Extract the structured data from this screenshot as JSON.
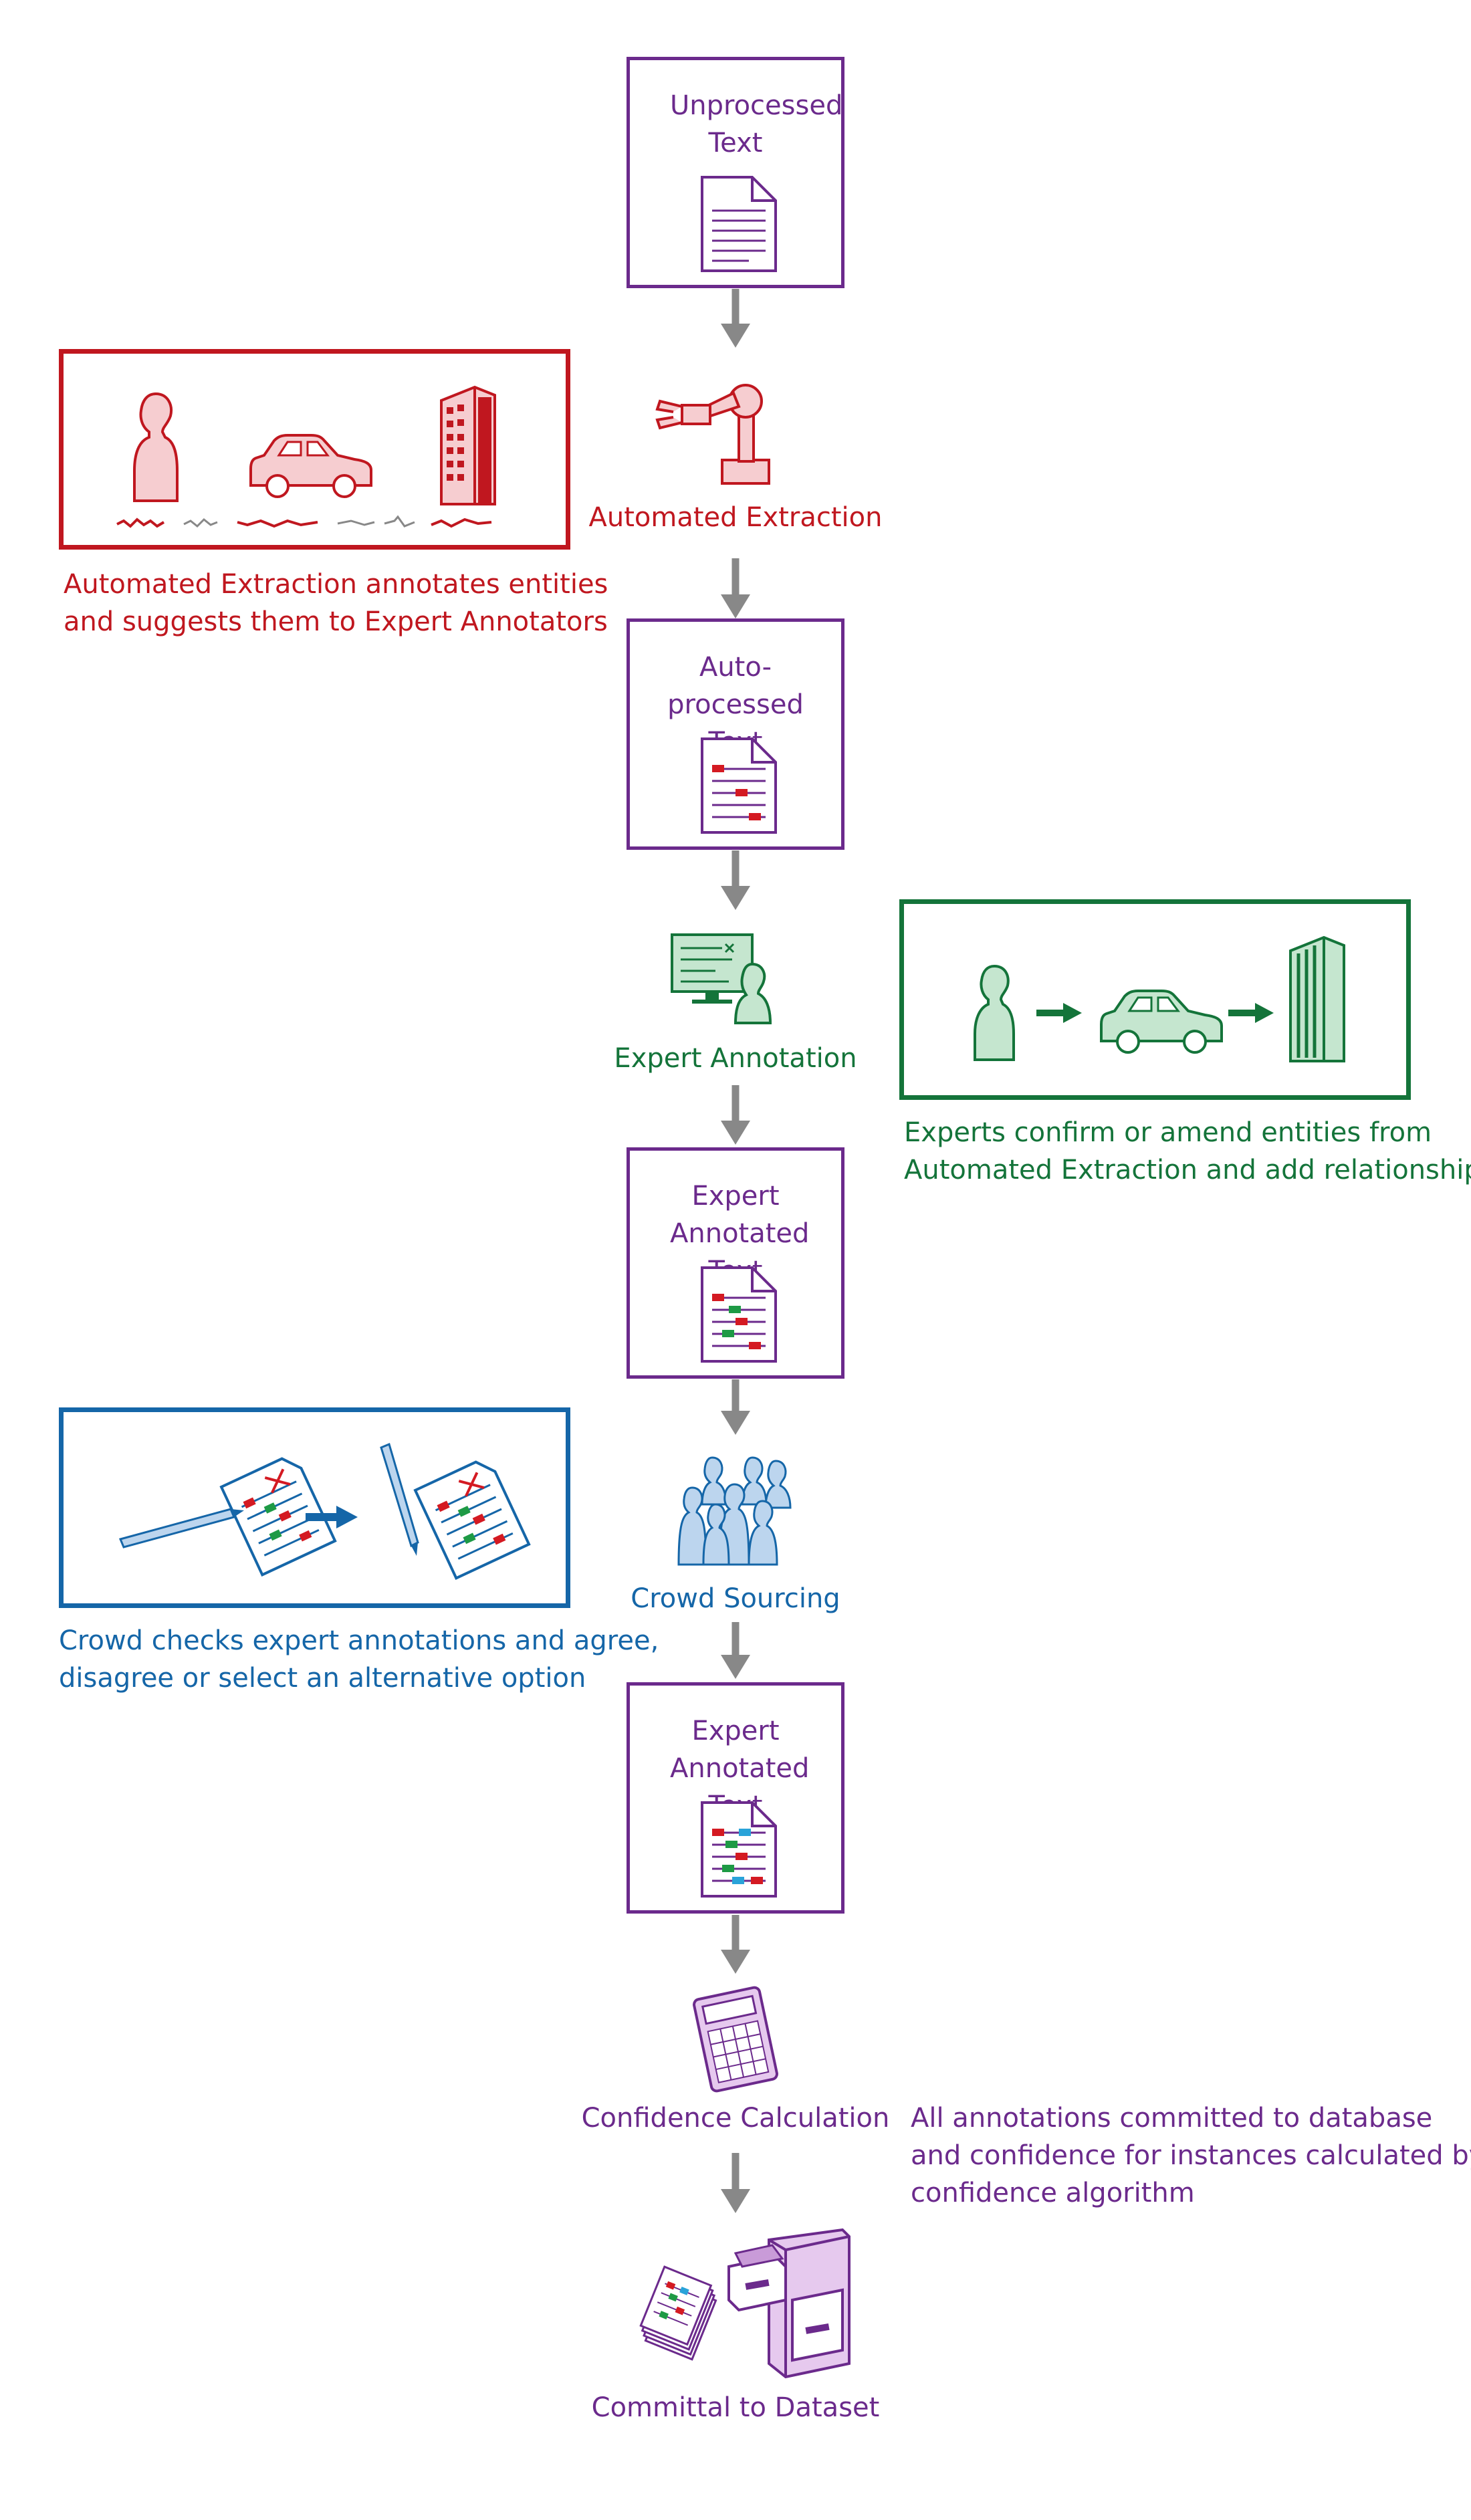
{
  "colors": {
    "purple": "#6b2a8c",
    "red": "#c0171f",
    "green": "#14743a",
    "blue": "#1566a8",
    "arrow": "#888888"
  },
  "flow": {
    "unprocessed_text": "Unprocessed Text",
    "automated_extraction": "Automated Extraction",
    "auto_processed_text": "Auto-processed Text",
    "expert_annotation": "Expert Annotation",
    "expert_annotated_text_1": "Expert Annotated Text",
    "crowd_sourcing": "Crowd Sourcing",
    "expert_annotated_text_2": "Expert Annotated Text",
    "confidence_calculation": "Confidence Calculation",
    "committal_to_dataset": "Committal to Dataset"
  },
  "notes": {
    "automated_extraction": [
      "Automated Extraction annotates entities",
      "and suggests them to Expert Annotators"
    ],
    "expert_annotation": [
      "Experts confirm or amend entities from",
      "Automated Extraction and add relationships"
    ],
    "crowd_sourcing": [
      "Crowd checks expert annotations and agree,",
      "disagree or select an alternative option"
    ],
    "confidence_calculation": [
      "All annotations committed to database",
      "and confidence for instances calculated by",
      "confidence algorithm"
    ]
  },
  "icons": [
    "document-icon",
    "robot-arm-icon",
    "person-icon",
    "car-icon",
    "building-icon",
    "annotated-document-icon",
    "expert-at-screen-icon",
    "pen-icon",
    "crowd-icon",
    "calculator-icon",
    "filing-cabinet-icon",
    "document-stack-icon"
  ]
}
